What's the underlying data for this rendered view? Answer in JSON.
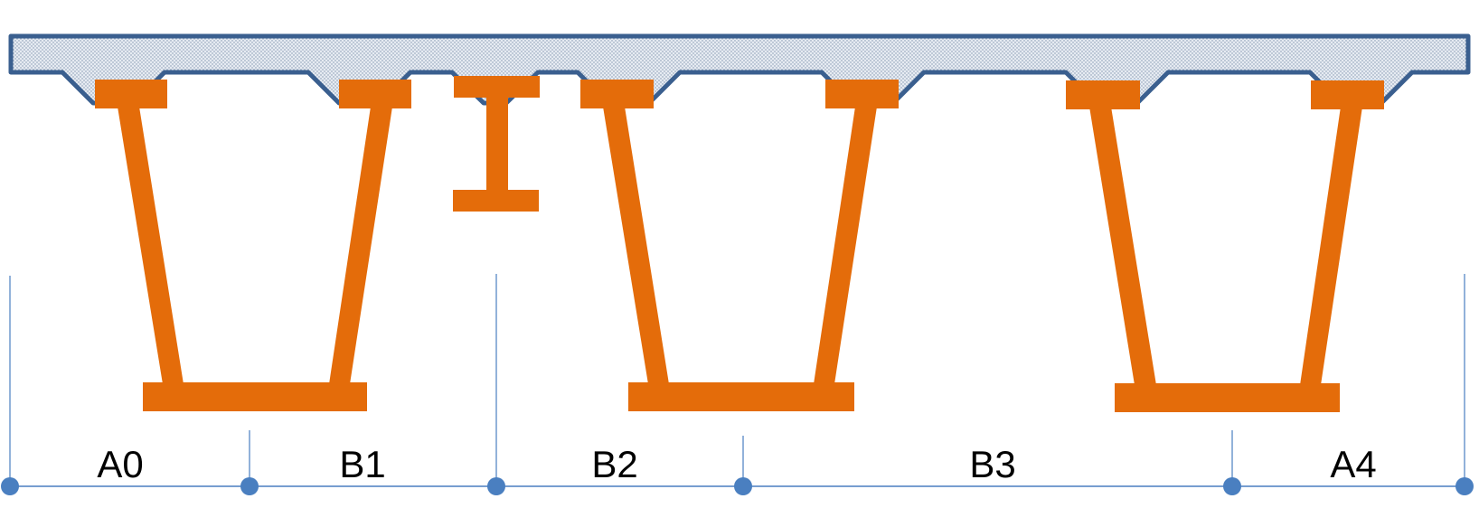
{
  "colors": {
    "deck_outline": "#3a5f8f",
    "deck_fill": "#dfe6ef",
    "girder": "#e46c0a",
    "dimension_line": "#4a7fc0",
    "dimension_node": "#4a7fc0",
    "label": "#000000"
  },
  "segments": [
    {
      "label": "A0"
    },
    {
      "label": "B1"
    },
    {
      "label": "B2"
    },
    {
      "label": "B3"
    },
    {
      "label": "A4"
    }
  ]
}
